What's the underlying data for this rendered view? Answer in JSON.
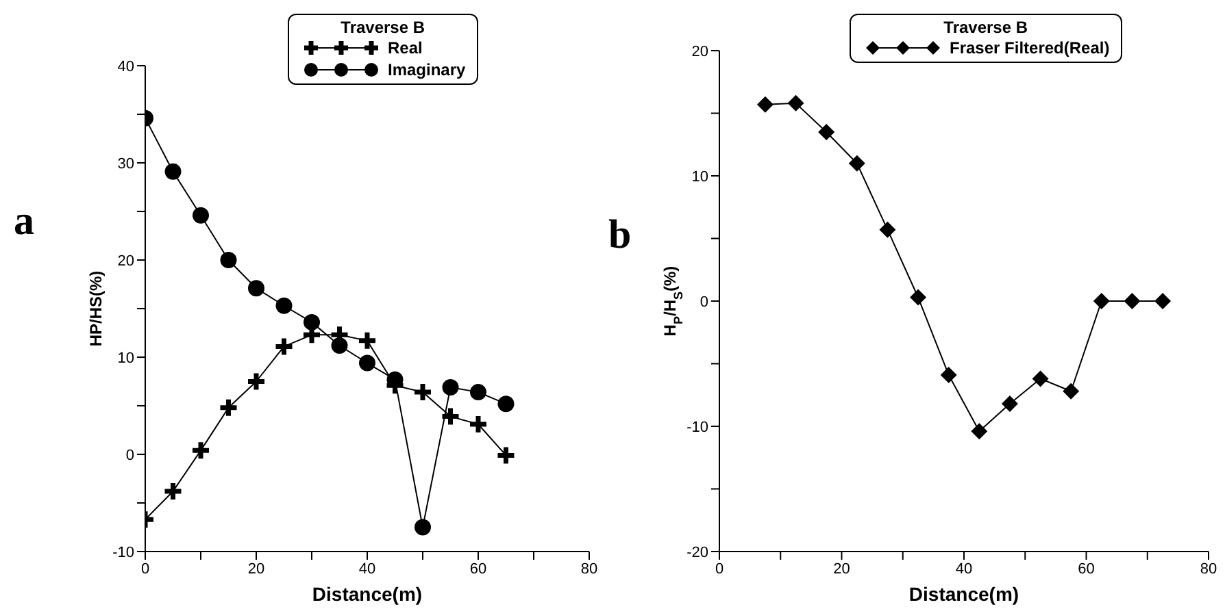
{
  "chart_data": [
    {
      "type": "line",
      "legend_title": "Traverse B",
      "xlabel": "Distance(m)",
      "ylabel": "HP/HS(%)",
      "annotations": [
        "a"
      ],
      "legend": "top",
      "line_style": "solid",
      "xlim": [
        0,
        80
      ],
      "xticks": [
        0,
        {
          "value": 10,
          "label": null
        },
        20,
        {
          "value": 30,
          "label": null
        },
        40,
        {
          "value": 50,
          "label": null
        },
        60,
        {
          "value": 70,
          "label": null
        },
        80
      ],
      "ylim": [
        -10,
        40
      ],
      "yticks": [
        -10,
        {
          "value": -5,
          "label": null
        },
        0,
        {
          "value": 5,
          "label": null
        },
        10,
        {
          "value": 15,
          "label": null
        },
        20,
        {
          "value": 25,
          "label": null
        },
        30,
        {
          "value": 35,
          "label": null
        },
        40
      ],
      "x": [
        0,
        5,
        10,
        15,
        20,
        25,
        30,
        35,
        40,
        45,
        50,
        55,
        60,
        65
      ],
      "series": [
        {
          "name": "Real",
          "color": "#000000",
          "marker": "cross",
          "values": [
            -6.7,
            -3.8,
            0.4,
            4.8,
            7.5,
            11.1,
            12.3,
            12.3,
            11.7,
            7.1,
            6.4,
            3.9,
            3.1,
            -0.1
          ]
        },
        {
          "name": "Imaginary",
          "color": "#000000",
          "marker": "circle",
          "values": [
            34.6,
            29.1,
            24.6,
            20.0,
            17.1,
            15.3,
            13.6,
            11.2,
            9.4,
            7.7,
            -7.5,
            6.9,
            6.4,
            5.2
          ]
        }
      ]
    },
    {
      "type": "line",
      "legend_title": "Traverse B",
      "xlabel": "Distance(m)",
      "ylabel": "H$_{P}$/H$_{S}$(%)",
      "annotations": [
        "b"
      ],
      "legend": "top",
      "line_style": "solid",
      "xlim": [
        0,
        80
      ],
      "xticks": [
        0,
        {
          "value": 10,
          "label": null
        },
        20,
        {
          "value": 30,
          "label": null
        },
        40,
        {
          "value": 50,
          "label": null
        },
        60,
        {
          "value": 70,
          "label": null
        },
        80
      ],
      "ylim": [
        -20,
        20
      ],
      "yticks": [
        -20,
        {
          "value": -15,
          "label": null
        },
        -10,
        {
          "value": -5,
          "label": null
        },
        0,
        {
          "value": 5,
          "label": null
        },
        10,
        {
          "value": 15,
          "label": null
        },
        20
      ],
      "x": [
        7.5,
        12.5,
        17.5,
        22.5,
        27.5,
        32.5,
        37.5,
        42.5,
        47.5,
        52.5,
        57.5,
        62.5,
        67.5,
        72.5
      ],
      "series": [
        {
          "name": "Fraser Filtered(Real)",
          "color": "#000000",
          "marker": "diamond",
          "values": [
            15.7,
            15.8,
            13.5,
            11.0,
            5.7,
            0.3,
            -5.9,
            -10.4,
            -8.2,
            -6.2,
            -7.2,
            0,
            0,
            0
          ]
        }
      ]
    }
  ]
}
